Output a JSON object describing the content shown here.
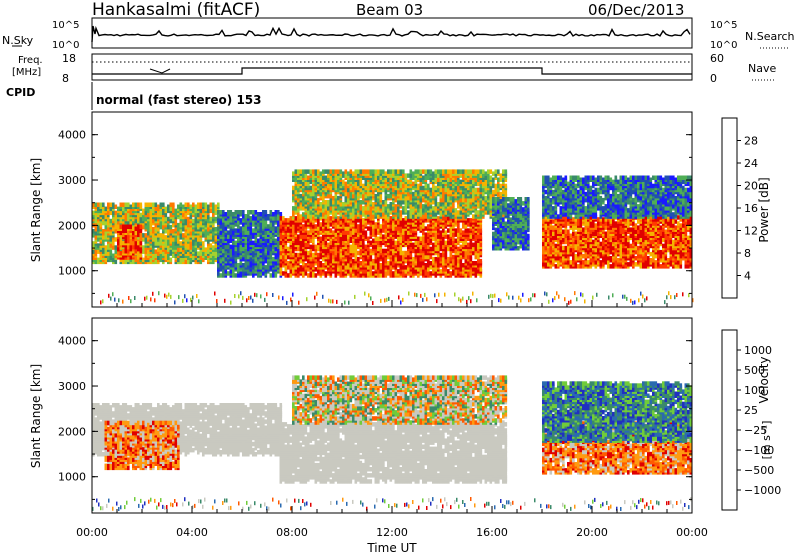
{
  "header": {
    "station": "Hankasalmi (fitACF)",
    "beam": "Beam 03",
    "date": "06/Dec/2013"
  },
  "top_panels": {
    "nsky_label": "N.Sky",
    "nsearch_label": "N.Search",
    "noise_ticks_left": [
      "10^5",
      "10^0"
    ],
    "noise_ticks_right": [
      "10^5",
      "10^0"
    ],
    "freq_label_1": "Freq.",
    "freq_label_2": "[MHz]",
    "freq_ticks": [
      "18",
      "8"
    ],
    "nave_label": "Nave",
    "nave_ticks": [
      "60",
      "0"
    ],
    "cpid_label": "CPID",
    "cpid_text": "normal (fast stereo) 153"
  },
  "colors": {
    "power_scale": [
      "#1a1aff",
      "#2050b0",
      "#3a8a6a",
      "#4fae56",
      "#a6d22e",
      "#f5b300",
      "#ff7a00",
      "#ff3a00",
      "#e00000"
    ],
    "velocity_scale": [
      "#e00000",
      "#ff5a00",
      "#ff9a10",
      "#c9c9c0",
      "#c9c9c0",
      "#70cc3a",
      "#3a8a6a",
      "#2a6ab0",
      "#2030c0"
    ]
  },
  "chart_data": [
    {
      "type": "heatmap",
      "panel": "power",
      "ylabel": "Slant Range [km]",
      "yticks": [
        "4000",
        "3000",
        "2000",
        "1000"
      ],
      "ylim": [
        200,
        4500
      ],
      "xlim_hours": [
        0,
        24
      ],
      "colorbar_label": "Power [dB]",
      "colorbar_ticks": [
        "28",
        "24",
        "20",
        "16",
        "12",
        "8",
        "4"
      ],
      "regions_hours_km": [
        {
          "t": [
            0.0,
            5.0
          ],
          "r": [
            1200,
            2500
          ],
          "level": "medium"
        },
        {
          "t": [
            1.0,
            2.0
          ],
          "r": [
            1300,
            2000
          ],
          "level": "high"
        },
        {
          "t": [
            5.0,
            7.5
          ],
          "r": [
            900,
            2300
          ],
          "level": "low"
        },
        {
          "t": [
            7.5,
            15.5
          ],
          "r": [
            900,
            2200
          ],
          "level": "high"
        },
        {
          "t": [
            8.0,
            16.5
          ],
          "r": [
            2200,
            3200
          ],
          "level": "medium"
        },
        {
          "t": [
            16.0,
            17.5
          ],
          "r": [
            1500,
            2600
          ],
          "level": "low"
        },
        {
          "t": [
            18.0,
            24.0
          ],
          "r": [
            1100,
            2200
          ],
          "level": "high"
        },
        {
          "t": [
            18.0,
            24.0
          ],
          "r": [
            2200,
            3100
          ],
          "level": "low"
        }
      ]
    },
    {
      "type": "heatmap",
      "panel": "velocity",
      "ylabel": "Slant Range [km]",
      "yticks": [
        "4000",
        "3000",
        "2000",
        "1000"
      ],
      "ylim": [
        200,
        4500
      ],
      "xlim_hours": [
        0,
        24
      ],
      "xticks": [
        "00:00",
        "04:00",
        "08:00",
        "12:00",
        "16:00",
        "20:00",
        "00:00"
      ],
      "xlabel": "Time UT",
      "colorbar_label_main": "Velocity",
      "colorbar_label_units": "[m s⁻¹]",
      "colorbar_ticks": [
        "1000",
        "500",
        "100",
        "25",
        "−25",
        "−100",
        "−500",
        "−1000"
      ],
      "regions_hours_km": [
        {
          "t": [
            0.0,
            7.5
          ],
          "r": [
            1500,
            2600
          ],
          "level": "ground"
        },
        {
          "t": [
            0.5,
            3.5
          ],
          "r": [
            1200,
            2200
          ],
          "level": "negative"
        },
        {
          "t": [
            7.5,
            16.5
          ],
          "r": [
            900,
            2200
          ],
          "level": "ground"
        },
        {
          "t": [
            8.0,
            16.5
          ],
          "r": [
            2200,
            3200
          ],
          "level": "mixed"
        },
        {
          "t": [
            18.0,
            24.0
          ],
          "r": [
            1100,
            2200
          ],
          "level": "negative"
        },
        {
          "t": [
            18.0,
            24.0
          ],
          "r": [
            1800,
            3100
          ],
          "level": "positive"
        }
      ]
    }
  ]
}
